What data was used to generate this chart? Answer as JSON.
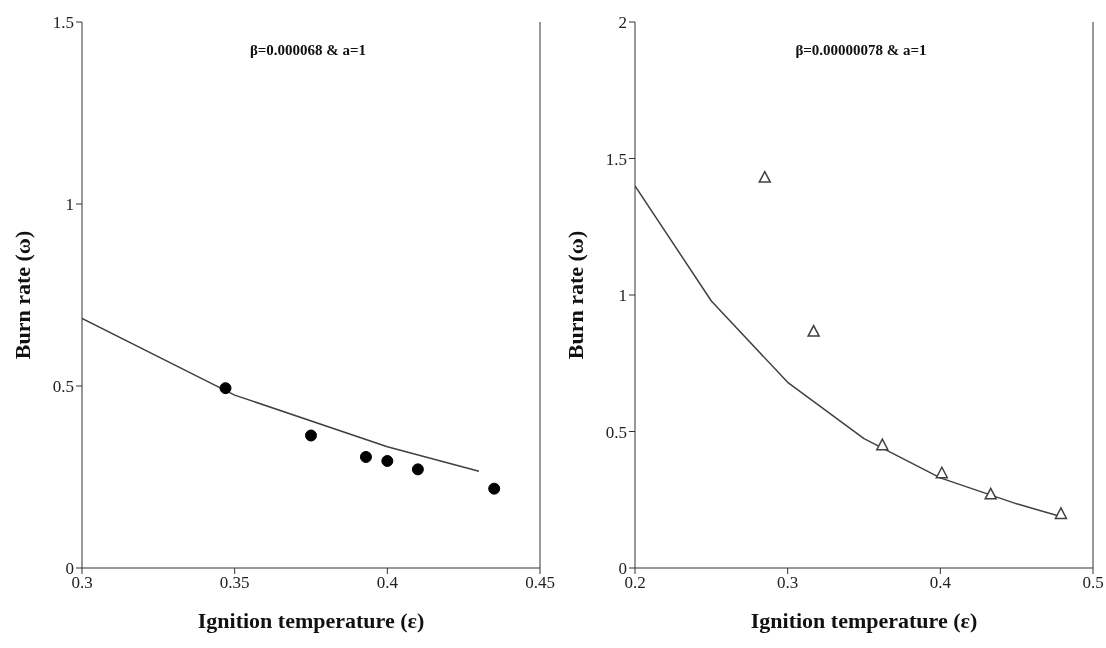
{
  "chart_data": [
    {
      "type": "scatter",
      "xlabel": "Ignition temperature (ε)",
      "ylabel": "Burn rate (ω)",
      "annotations": [
        "β=0.000068 & a=1"
      ],
      "xlim": [
        0.3,
        0.45
      ],
      "xticks": [
        0.3,
        0.35,
        0.4,
        0.45
      ],
      "ylim": [
        0,
        1.5
      ],
      "yticks": [
        0,
        0.5,
        1,
        1.5
      ],
      "series": [
        {
          "type": "line",
          "color": "#404040",
          "marker": "none",
          "line_style": "solid",
          "x": [
            0.3,
            0.35,
            0.4,
            0.43
          ],
          "values": [
            0.686,
            0.475,
            0.333,
            0.266
          ]
        },
        {
          "color": "#000000",
          "marker": "circle",
          "x": [
            0.347,
            0.375,
            0.393,
            0.4,
            0.41,
            0.435
          ],
          "values": [
            0.494,
            0.364,
            0.305,
            0.294,
            0.271,
            0.218
          ]
        }
      ]
    },
    {
      "type": "scatter",
      "xlabel": "Ignition temperature (ε)",
      "ylabel": "Burn rate (ω)",
      "annotations": [
        "β=0.00000078 & a=1"
      ],
      "xlim": [
        0.2,
        0.5
      ],
      "xticks": [
        0.2,
        0.3,
        0.4,
        0.5
      ],
      "ylim": [
        0,
        2
      ],
      "yticks": [
        0,
        0.5,
        1,
        1.5,
        2
      ],
      "series": [
        {
          "type": "line",
          "color": "#404040",
          "marker": "none",
          "line_style": "solid",
          "x": [
            0.2,
            0.25,
            0.3,
            0.35,
            0.4,
            0.45,
            0.48
          ],
          "values": [
            1.4,
            0.978,
            0.68,
            0.474,
            0.33,
            0.235,
            0.187
          ]
        },
        {
          "color": "#404040",
          "marker": "triangle",
          "x": [
            0.285,
            0.317,
            0.362,
            0.401,
            0.433,
            0.479
          ],
          "values": [
            1.43,
            0.866,
            0.45,
            0.347,
            0.27,
            0.198
          ]
        }
      ]
    }
  ]
}
